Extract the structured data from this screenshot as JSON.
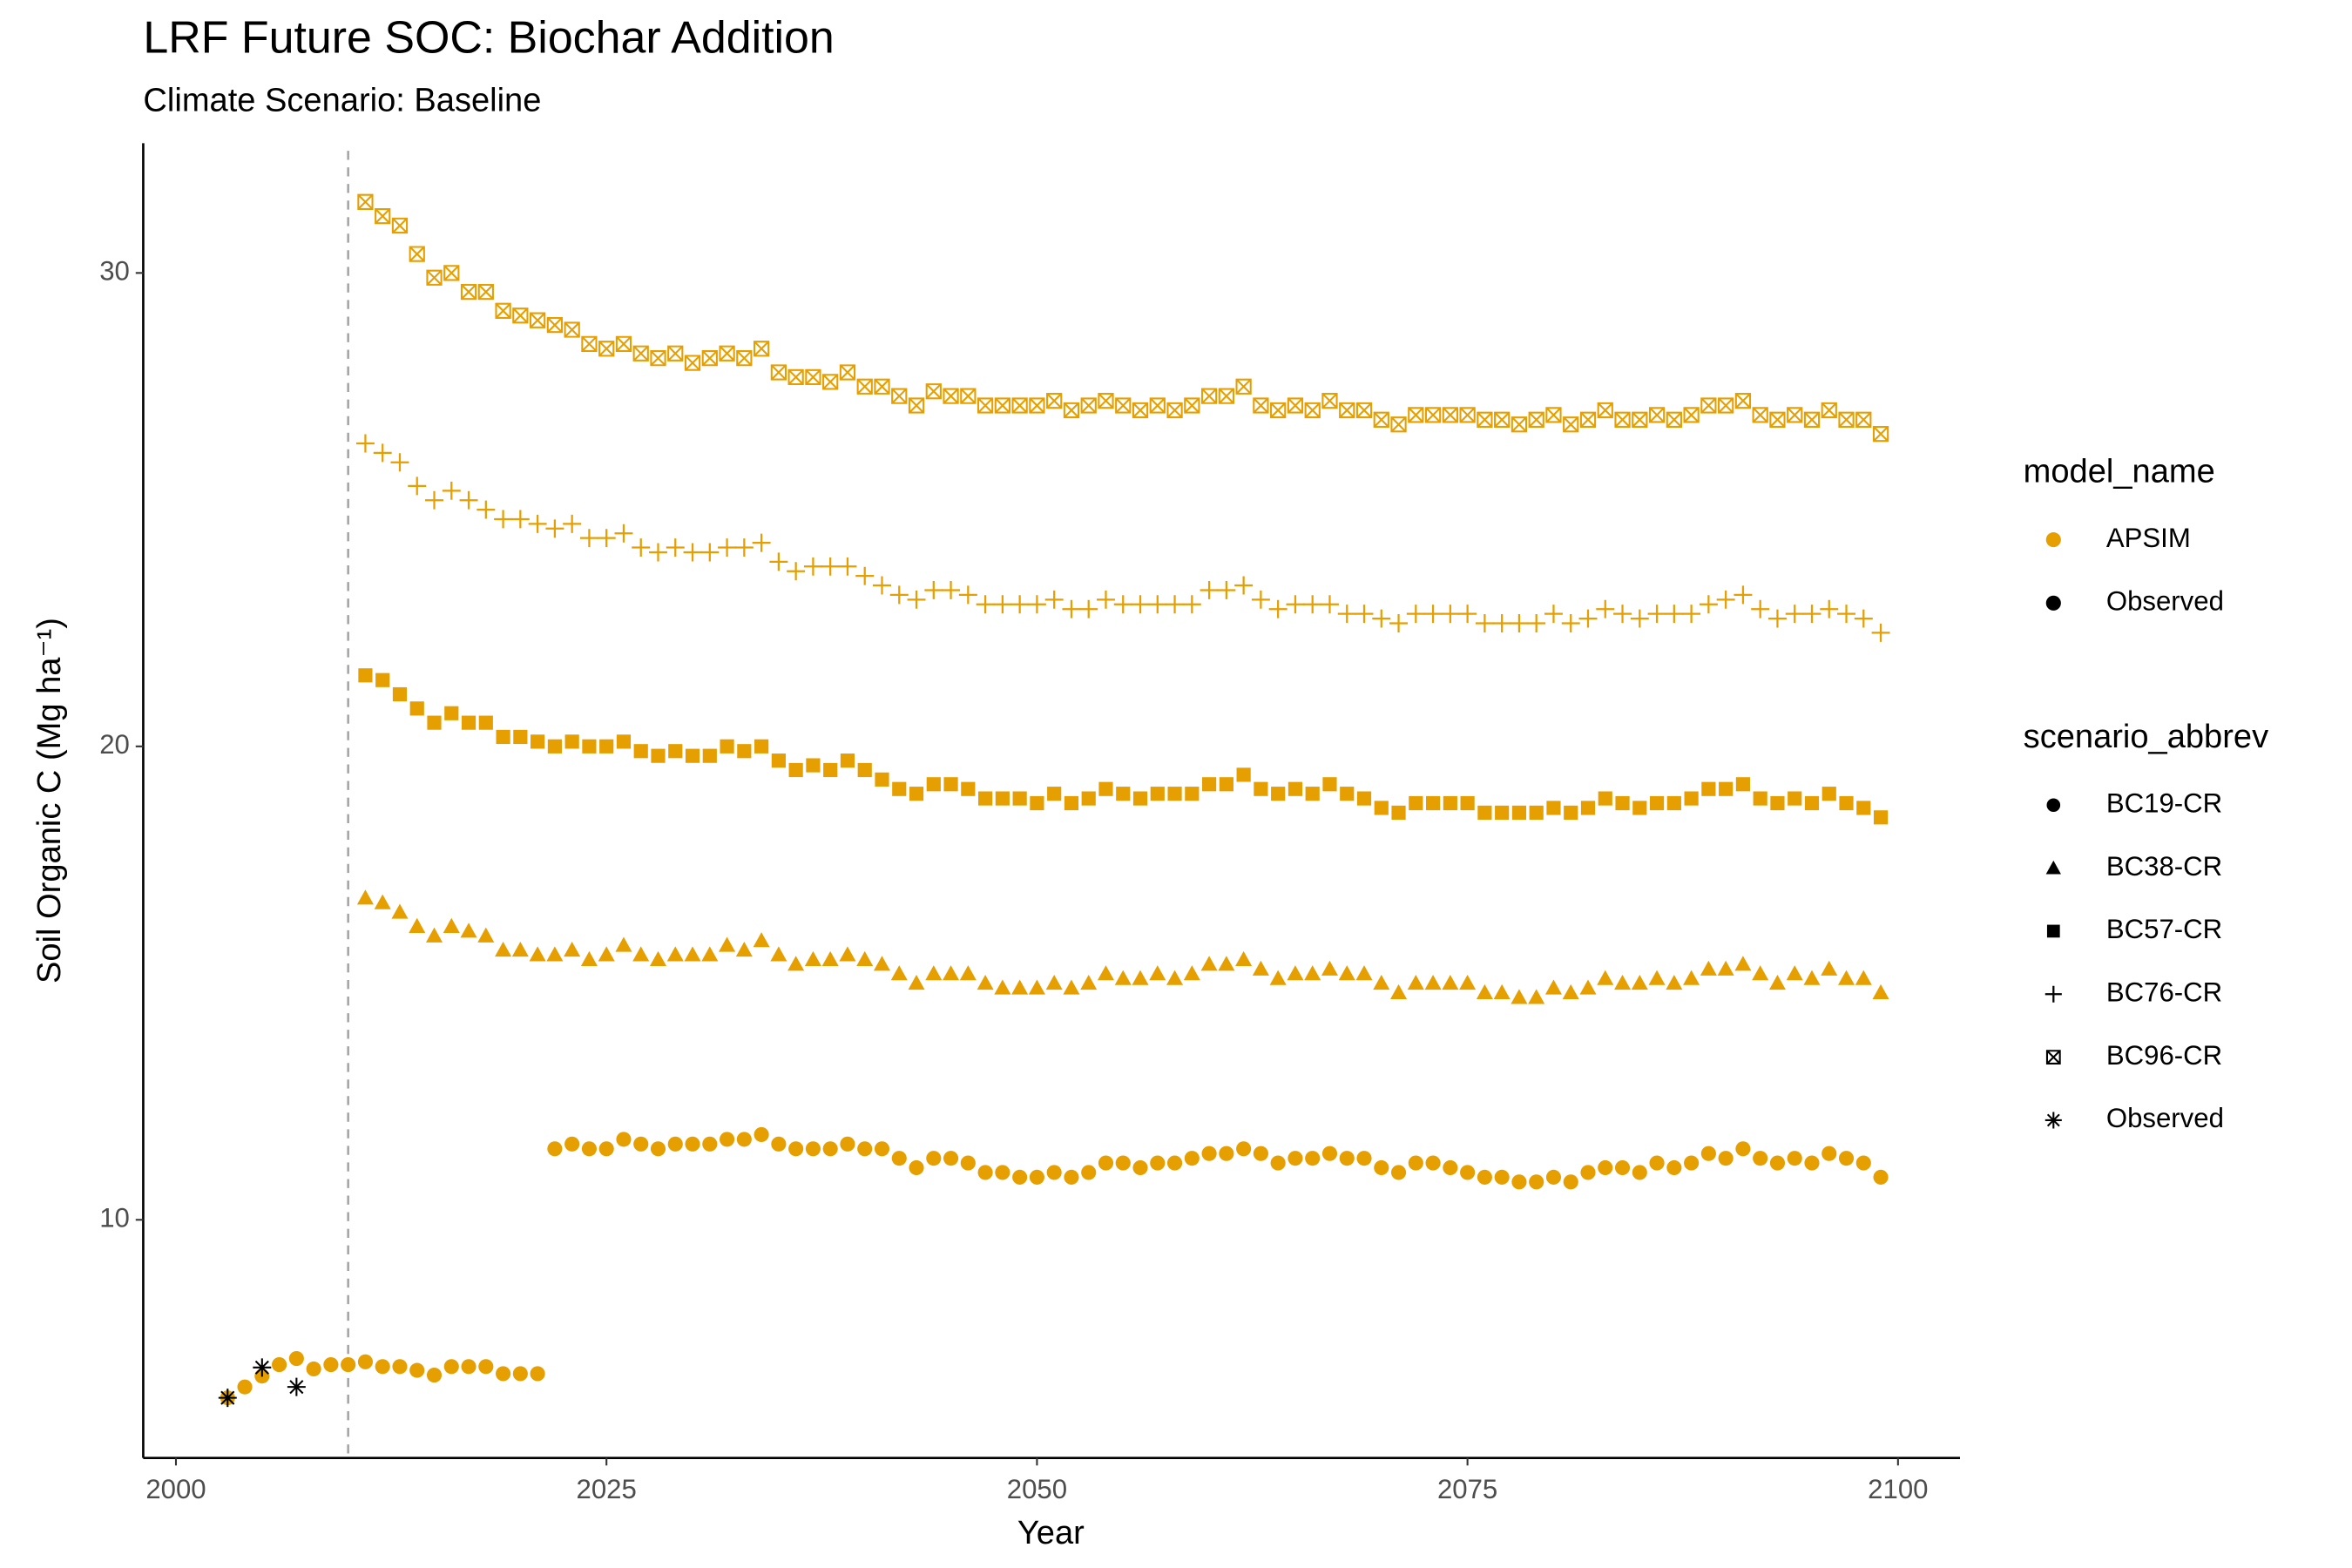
{
  "chart_data": {
    "type": "scatter",
    "title": "LRF  Future SOC: Biochar Addition",
    "subtitle": "Climate Scenario: Baseline",
    "x_label": "Year",
    "y_label": "Soil Organic C (Mg ha⁻¹)",
    "xlim": [
      1998.1,
      2103.6
    ],
    "ylim": [
      4.97,
      32.74
    ],
    "xticks": [
      2000,
      2025,
      2050,
      2075,
      2100
    ],
    "yticks": [
      10,
      20,
      30
    ],
    "grid": false,
    "vline_x": 2010,
    "model_legend": {
      "title": "model_name",
      "items": [
        {
          "label": "APSIM",
          "color": "#E69F00"
        },
        {
          "label": "Observed",
          "color": "#000000"
        }
      ]
    },
    "shape_legend_title": "scenario_abbrev",
    "series": [
      {
        "name": "BC19-CR",
        "shape": "circle",
        "color": "#E69F00",
        "x": [
          2003,
          2004,
          2005,
          2006,
          2007,
          2008,
          2009,
          2010,
          2011,
          2012,
          2013,
          2014,
          2015,
          2016,
          2017,
          2018,
          2019,
          2020,
          2021,
          2022,
          2023,
          2024,
          2025,
          2026,
          2027,
          2028,
          2029,
          2030,
          2031,
          2032,
          2033,
          2034,
          2035,
          2036,
          2037,
          2038,
          2039,
          2040,
          2041,
          2042,
          2043,
          2044,
          2045,
          2046,
          2047,
          2048,
          2049,
          2050,
          2051,
          2052,
          2053,
          2054,
          2055,
          2056,
          2057,
          2058,
          2059,
          2060,
          2061,
          2062,
          2063,
          2064,
          2065,
          2066,
          2067,
          2068,
          2069,
          2070,
          2071,
          2072,
          2073,
          2074,
          2075,
          2076,
          2077,
          2078,
          2079,
          2080,
          2081,
          2082,
          2083,
          2084,
          2085,
          2086,
          2087,
          2088,
          2089,
          2090,
          2091,
          2092,
          2093,
          2094,
          2095,
          2096,
          2097,
          2098,
          2099
        ],
        "values": [
          6.24,
          6.47,
          6.7,
          6.94,
          7.07,
          6.85,
          6.94,
          6.94,
          7.0,
          6.9,
          6.9,
          6.82,
          6.72,
          6.9,
          6.9,
          6.9,
          6.75,
          6.75,
          6.75,
          11.5,
          11.6,
          11.5,
          11.5,
          11.7,
          11.6,
          11.5,
          11.6,
          11.6,
          11.6,
          11.7,
          11.7,
          11.8,
          11.6,
          11.5,
          11.5,
          11.5,
          11.6,
          11.5,
          11.5,
          11.3,
          11.1,
          11.3,
          11.3,
          11.2,
          11.0,
          11.0,
          10.9,
          10.9,
          11.0,
          10.9,
          11.0,
          11.2,
          11.2,
          11.1,
          11.2,
          11.2,
          11.3,
          11.4,
          11.4,
          11.5,
          11.4,
          11.2,
          11.3,
          11.3,
          11.4,
          11.3,
          11.3,
          11.1,
          11.0,
          11.2,
          11.2,
          11.1,
          11.0,
          10.9,
          10.9,
          10.8,
          10.8,
          10.9,
          10.8,
          11.0,
          11.1,
          11.1,
          11.0,
          11.2,
          11.1,
          11.2,
          11.4,
          11.3,
          11.5,
          11.3,
          11.2,
          11.3,
          11.2,
          11.4,
          11.3,
          11.2,
          10.9
        ]
      },
      {
        "name": "BC38-CR",
        "shape": "triangle",
        "color": "#E69F00",
        "x": [
          2011,
          2012,
          2013,
          2014,
          2015,
          2016,
          2017,
          2018,
          2019,
          2020,
          2021,
          2022,
          2023,
          2024,
          2025,
          2026,
          2027,
          2028,
          2029,
          2030,
          2031,
          2032,
          2033,
          2034,
          2035,
          2036,
          2037,
          2038,
          2039,
          2040,
          2041,
          2042,
          2043,
          2044,
          2045,
          2046,
          2047,
          2048,
          2049,
          2050,
          2051,
          2052,
          2053,
          2054,
          2055,
          2056,
          2057,
          2058,
          2059,
          2060,
          2061,
          2062,
          2063,
          2064,
          2065,
          2066,
          2067,
          2068,
          2069,
          2070,
          2071,
          2072,
          2073,
          2074,
          2075,
          2076,
          2077,
          2078,
          2079,
          2080,
          2081,
          2082,
          2083,
          2084,
          2085,
          2086,
          2087,
          2088,
          2089,
          2090,
          2091,
          2092,
          2093,
          2094,
          2095,
          2096,
          2097,
          2098,
          2099
        ],
        "values": [
          16.8,
          16.7,
          16.5,
          16.2,
          16.0,
          16.2,
          16.1,
          16.0,
          15.7,
          15.7,
          15.6,
          15.6,
          15.7,
          15.5,
          15.6,
          15.8,
          15.6,
          15.5,
          15.6,
          15.6,
          15.6,
          15.8,
          15.7,
          15.9,
          15.6,
          15.4,
          15.5,
          15.5,
          15.6,
          15.5,
          15.4,
          15.2,
          15.0,
          15.2,
          15.2,
          15.2,
          15.0,
          14.9,
          14.9,
          14.9,
          15.0,
          14.9,
          15.0,
          15.2,
          15.1,
          15.1,
          15.2,
          15.1,
          15.2,
          15.4,
          15.4,
          15.5,
          15.3,
          15.1,
          15.2,
          15.2,
          15.3,
          15.2,
          15.2,
          15.0,
          14.8,
          15.0,
          15.0,
          15.0,
          15.0,
          14.8,
          14.8,
          14.7,
          14.7,
          14.9,
          14.8,
          14.9,
          15.1,
          15.0,
          15.0,
          15.1,
          15.0,
          15.1,
          15.3,
          15.3,
          15.4,
          15.2,
          15.0,
          15.2,
          15.1,
          15.3,
          15.1,
          15.1,
          14.8
        ]
      },
      {
        "name": "BC57-CR",
        "shape": "square",
        "color": "#E69F00",
        "x": [
          2011,
          2012,
          2013,
          2014,
          2015,
          2016,
          2017,
          2018,
          2019,
          2020,
          2021,
          2022,
          2023,
          2024,
          2025,
          2026,
          2027,
          2028,
          2029,
          2030,
          2031,
          2032,
          2033,
          2034,
          2035,
          2036,
          2037,
          2038,
          2039,
          2040,
          2041,
          2042,
          2043,
          2044,
          2045,
          2046,
          2047,
          2048,
          2049,
          2050,
          2051,
          2052,
          2053,
          2054,
          2055,
          2056,
          2057,
          2058,
          2059,
          2060,
          2061,
          2062,
          2063,
          2064,
          2065,
          2066,
          2067,
          2068,
          2069,
          2070,
          2071,
          2072,
          2073,
          2074,
          2075,
          2076,
          2077,
          2078,
          2079,
          2080,
          2081,
          2082,
          2083,
          2084,
          2085,
          2086,
          2087,
          2088,
          2089,
          2090,
          2091,
          2092,
          2093,
          2094,
          2095,
          2096,
          2097,
          2098,
          2099
        ],
        "values": [
          21.5,
          21.4,
          21.1,
          20.8,
          20.5,
          20.7,
          20.5,
          20.5,
          20.2,
          20.2,
          20.1,
          20.0,
          20.1,
          20.0,
          20.0,
          20.1,
          19.9,
          19.8,
          19.9,
          19.8,
          19.8,
          20.0,
          19.9,
          20.0,
          19.7,
          19.5,
          19.6,
          19.5,
          19.7,
          19.5,
          19.3,
          19.1,
          19.0,
          19.2,
          19.2,
          19.1,
          18.9,
          18.9,
          18.9,
          18.8,
          19.0,
          18.8,
          18.9,
          19.1,
          19.0,
          18.9,
          19.0,
          19.0,
          19.0,
          19.2,
          19.2,
          19.4,
          19.1,
          19.0,
          19.1,
          19.0,
          19.2,
          19.0,
          18.9,
          18.7,
          18.6,
          18.8,
          18.8,
          18.8,
          18.8,
          18.6,
          18.6,
          18.6,
          18.6,
          18.7,
          18.6,
          18.7,
          18.9,
          18.8,
          18.7,
          18.8,
          18.8,
          18.9,
          19.1,
          19.1,
          19.2,
          18.9,
          18.8,
          18.9,
          18.8,
          19.0,
          18.8,
          18.7,
          18.5
        ]
      },
      {
        "name": "BC76-CR",
        "shape": "plus",
        "color": "#E69F00",
        "x": [
          2011,
          2012,
          2013,
          2014,
          2015,
          2016,
          2017,
          2018,
          2019,
          2020,
          2021,
          2022,
          2023,
          2024,
          2025,
          2026,
          2027,
          2028,
          2029,
          2030,
          2031,
          2032,
          2033,
          2034,
          2035,
          2036,
          2037,
          2038,
          2039,
          2040,
          2041,
          2042,
          2043,
          2044,
          2045,
          2046,
          2047,
          2048,
          2049,
          2050,
          2051,
          2052,
          2053,
          2054,
          2055,
          2056,
          2057,
          2058,
          2059,
          2060,
          2061,
          2062,
          2063,
          2064,
          2065,
          2066,
          2067,
          2068,
          2069,
          2070,
          2071,
          2072,
          2073,
          2074,
          2075,
          2076,
          2077,
          2078,
          2079,
          2080,
          2081,
          2082,
          2083,
          2084,
          2085,
          2086,
          2087,
          2088,
          2089,
          2090,
          2091,
          2092,
          2093,
          2094,
          2095,
          2096,
          2097,
          2098,
          2099
        ],
        "values": [
          26.4,
          26.2,
          26.0,
          25.5,
          25.2,
          25.4,
          25.2,
          25.0,
          24.8,
          24.8,
          24.7,
          24.6,
          24.7,
          24.4,
          24.4,
          24.5,
          24.2,
          24.1,
          24.2,
          24.1,
          24.1,
          24.2,
          24.2,
          24.3,
          23.9,
          23.7,
          23.8,
          23.8,
          23.8,
          23.6,
          23.4,
          23.2,
          23.1,
          23.3,
          23.3,
          23.2,
          23.0,
          23.0,
          23.0,
          23.0,
          23.1,
          22.9,
          22.9,
          23.1,
          23.0,
          23.0,
          23.0,
          23.0,
          23.0,
          23.3,
          23.3,
          23.4,
          23.1,
          22.9,
          23.0,
          23.0,
          23.0,
          22.8,
          22.8,
          22.7,
          22.6,
          22.8,
          22.8,
          22.8,
          22.8,
          22.6,
          22.6,
          22.6,
          22.6,
          22.8,
          22.6,
          22.7,
          22.9,
          22.8,
          22.7,
          22.8,
          22.8,
          22.8,
          23.0,
          23.1,
          23.2,
          22.9,
          22.7,
          22.8,
          22.8,
          22.9,
          22.8,
          22.7,
          22.4
        ]
      },
      {
        "name": "BC96-CR",
        "shape": "boxx",
        "color": "#E69F00",
        "x": [
          2011,
          2012,
          2013,
          2014,
          2015,
          2016,
          2017,
          2018,
          2019,
          2020,
          2021,
          2022,
          2023,
          2024,
          2025,
          2026,
          2027,
          2028,
          2029,
          2030,
          2031,
          2032,
          2033,
          2034,
          2035,
          2036,
          2037,
          2038,
          2039,
          2040,
          2041,
          2042,
          2043,
          2044,
          2045,
          2046,
          2047,
          2048,
          2049,
          2050,
          2051,
          2052,
          2053,
          2054,
          2055,
          2056,
          2057,
          2058,
          2059,
          2060,
          2061,
          2062,
          2063,
          2064,
          2065,
          2066,
          2067,
          2068,
          2069,
          2070,
          2071,
          2072,
          2073,
          2074,
          2075,
          2076,
          2077,
          2078,
          2079,
          2080,
          2081,
          2082,
          2083,
          2084,
          2085,
          2086,
          2087,
          2088,
          2089,
          2090,
          2091,
          2092,
          2093,
          2094,
          2095,
          2096,
          2097,
          2098,
          2099
        ],
        "values": [
          31.5,
          31.2,
          31.0,
          30.4,
          29.9,
          30.0,
          29.6,
          29.6,
          29.2,
          29.1,
          29.0,
          28.9,
          28.8,
          28.5,
          28.4,
          28.5,
          28.3,
          28.2,
          28.3,
          28.1,
          28.2,
          28.3,
          28.2,
          28.4,
          27.9,
          27.8,
          27.8,
          27.7,
          27.9,
          27.6,
          27.6,
          27.4,
          27.2,
          27.5,
          27.4,
          27.4,
          27.2,
          27.2,
          27.2,
          27.2,
          27.3,
          27.1,
          27.2,
          27.3,
          27.2,
          27.1,
          27.2,
          27.1,
          27.2,
          27.4,
          27.4,
          27.6,
          27.2,
          27.1,
          27.2,
          27.1,
          27.3,
          27.1,
          27.1,
          26.9,
          26.8,
          27.0,
          27.0,
          27.0,
          27.0,
          26.9,
          26.9,
          26.8,
          26.9,
          27.0,
          26.8,
          26.9,
          27.1,
          26.9,
          26.9,
          27.0,
          26.9,
          27.0,
          27.2,
          27.2,
          27.3,
          27.0,
          26.9,
          27.0,
          26.9,
          27.1,
          26.9,
          26.9,
          26.6
        ]
      },
      {
        "name": "Observed",
        "shape": "asterisk",
        "color": "#000000",
        "x": [
          2003,
          2005,
          2007
        ],
        "values": [
          6.24,
          6.88,
          6.47
        ]
      }
    ]
  }
}
